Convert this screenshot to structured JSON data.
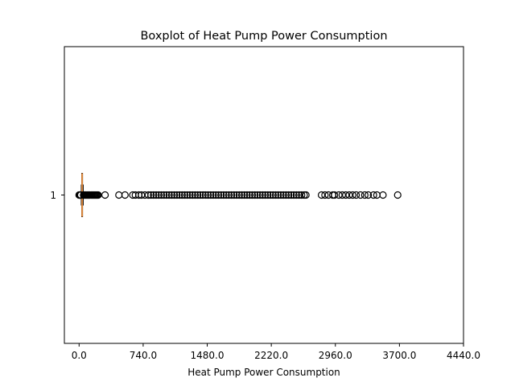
{
  "chart_data": {
    "type": "boxplot",
    "orientation": "horizontal",
    "title": "Boxplot of Heat Pump Power Consumption",
    "xlabel": "Heat Pump Power Consumption",
    "ylabel": "",
    "xlim": [
      -170,
      4440
    ],
    "x_ticks": [
      0,
      740,
      1480,
      2220,
      2960,
      3700,
      4440
    ],
    "x_tick_labels": [
      "0.0",
      "740.0",
      "1480.0",
      "2220.0",
      "2960.0",
      "3700.0",
      "4440.0"
    ],
    "y_tick_labels": [
      "1"
    ],
    "colors": {
      "median": "#d9853b",
      "box": "#000000",
      "flier": "#000000"
    },
    "series": [
      {
        "median": 35,
        "q1": 30,
        "q3": 40,
        "whisker_low": 25,
        "whisker_high": 48,
        "fliers": [
          0,
          5,
          10,
          15,
          20,
          52,
          58,
          64,
          72,
          80,
          88,
          96,
          104,
          110,
          118,
          125,
          140,
          150,
          160,
          170,
          180,
          190,
          200,
          210,
          220,
          300,
          460,
          530,
          620,
          650,
          690,
          720,
          760,
          800,
          830,
          860,
          890,
          920,
          950,
          980,
          1010,
          1040,
          1070,
          1100,
          1130,
          1160,
          1190,
          1220,
          1250,
          1280,
          1310,
          1340,
          1370,
          1400,
          1430,
          1460,
          1490,
          1520,
          1550,
          1580,
          1610,
          1640,
          1670,
          1700,
          1730,
          1760,
          1790,
          1820,
          1850,
          1880,
          1910,
          1940,
          1970,
          2000,
          2030,
          2060,
          2090,
          2120,
          2150,
          2180,
          2210,
          2240,
          2270,
          2300,
          2330,
          2360,
          2390,
          2420,
          2450,
          2480,
          2510,
          2540,
          2570,
          2600,
          2620,
          2800,
          2840,
          2880,
          2930,
          2950,
          3000,
          3040,
          3080,
          3120,
          3160,
          3200,
          3250,
          3300,
          3340,
          3400,
          3440,
          3510,
          3680
        ]
      }
    ]
  }
}
